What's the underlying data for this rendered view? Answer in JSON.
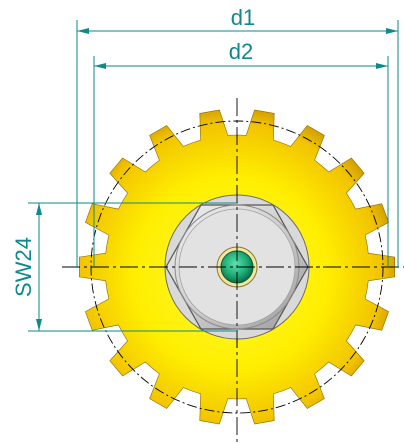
{
  "labels": {
    "d1": "d1",
    "d2": "d2",
    "sw": "SW24"
  },
  "colors": {
    "dimension": "#0e8a8a",
    "centerline": "#000000",
    "gear_light": "#fff200",
    "gear_dark": "#c89400",
    "nut_fill": "#d6d6d6",
    "nut_edge": "#5a5a5a",
    "bore_fill": "#22b07a"
  },
  "gear": {
    "tooth_count": 18
  }
}
